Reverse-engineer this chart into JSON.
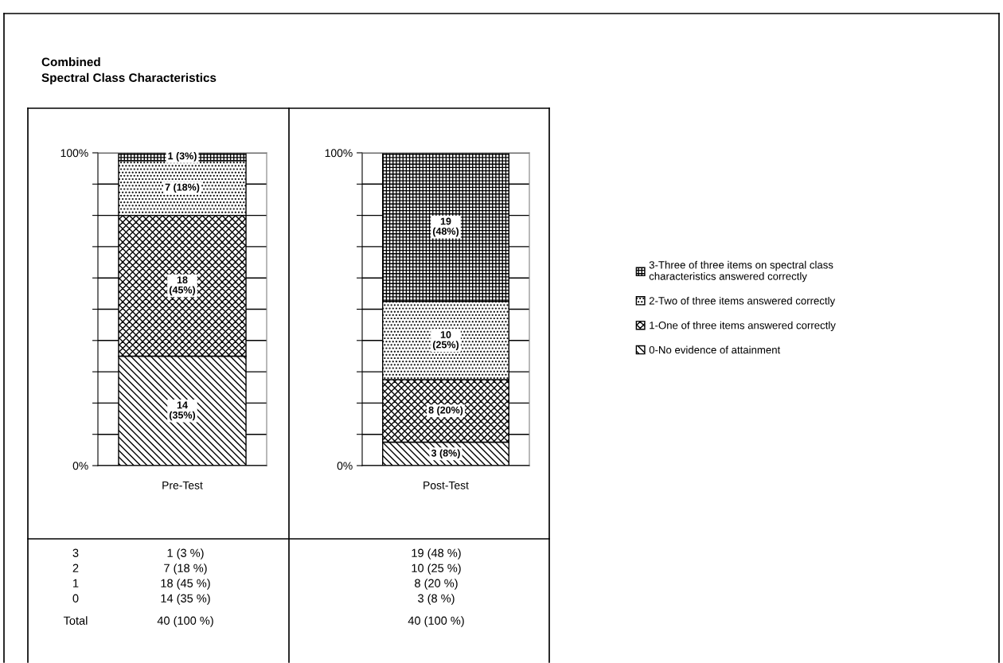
{
  "chart_data": [
    {
      "type": "bar",
      "stacked": true,
      "title": "Combined\nSpectral Class Characteristics",
      "categories": [
        "Pre-Test"
      ],
      "series": [
        {
          "color": "#000000",
          "values": [
            35
          ],
          "value_labels": [
            "14\n(35%)"
          ]
        },
        {
          "color": "#000000",
          "values": [
            45
          ],
          "value_labels": [
            "18\n(45%)"
          ]
        },
        {
          "color": "#000000",
          "values": [
            17.5
          ],
          "value_labels": [
            "7 (18%)"
          ]
        },
        {
          "color": "#000000",
          "values": [
            2.5
          ],
          "value_labels": [
            "1 (3%)"
          ]
        }
      ],
      "ylim": [
        0,
        100
      ],
      "yticks": [
        {
          "value": 0,
          "label": "0%"
        },
        {
          "value": 10,
          "label": null
        },
        {
          "value": 20,
          "label": null
        },
        {
          "value": 30,
          "label": null
        },
        {
          "value": 40,
          "label": null
        },
        {
          "value": 50,
          "label": null
        },
        {
          "value": 60,
          "label": null
        },
        {
          "value": 70,
          "label": null
        },
        {
          "value": 80,
          "label": null
        },
        {
          "value": 90,
          "label": null
        },
        {
          "value": 100,
          "label": "100%"
        }
      ],
      "grid": "y",
      "annotations": [
        "3",
        "2",
        "1",
        "0",
        "Total",
        "1 (3 %)",
        "7 (18 %)",
        "18 (45 %)",
        "14 (35 %)",
        "40 (100 %)"
      ]
    },
    {
      "type": "bar",
      "stacked": true,
      "categories": [
        "Post-Test"
      ],
      "series": [
        {
          "name": "0-No evidence of attainment",
          "color": "#000000",
          "values": [
            7.5
          ],
          "value_labels": [
            "3 (8%)"
          ]
        },
        {
          "name": "1-One of three items answered correctly",
          "color": "#000000",
          "values": [
            20
          ],
          "value_labels": [
            "8 (20%)"
          ]
        },
        {
          "name": "2-Two of three items answered correctly",
          "color": "#000000",
          "values": [
            25
          ],
          "value_labels": [
            "10\n(25%)"
          ]
        },
        {
          "name": "3-Three of three items on spectral class\ncharacteristics answered correctly",
          "color": "#000000",
          "values": [
            47.5
          ],
          "value_labels": [
            "19\n(48%)"
          ]
        }
      ],
      "ylim": [
        0,
        100
      ],
      "yticks": [
        {
          "value": 0,
          "label": "0%"
        },
        {
          "value": 10,
          "label": null
        },
        {
          "value": 20,
          "label": null
        },
        {
          "value": 30,
          "label": null
        },
        {
          "value": 40,
          "label": null
        },
        {
          "value": 50,
          "label": null
        },
        {
          "value": 60,
          "label": null
        },
        {
          "value": 70,
          "label": null
        },
        {
          "value": 80,
          "label": null
        },
        {
          "value": 90,
          "label": null
        },
        {
          "value": 100,
          "label": "100%"
        }
      ],
      "grid": "y",
      "legend": "right",
      "annotations": [
        "19 (48 %)",
        "10 (25 %)",
        "8 (20 %)",
        "3 (8 %)",
        "40 (100 %)"
      ]
    }
  ]
}
